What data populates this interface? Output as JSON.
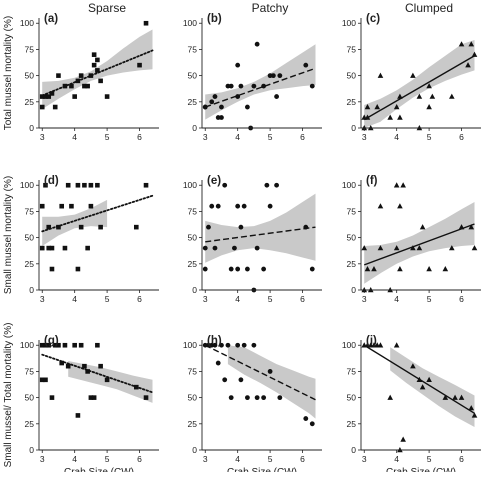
{
  "figure": {
    "column_titles": [
      "Sparse",
      "Patchy",
      "Clumped"
    ],
    "row_ylabels": [
      "Total mussel mortality (%)",
      "Small mussel mortality (%)",
      "Small mussel/ Total mortality (%)"
    ],
    "xlabel": "Crab Size (CW)"
  },
  "chart_data": [
    {
      "type": "scatter",
      "panel": "(a)",
      "column": "Sparse",
      "ylabel": "Total mussel mortality (%)",
      "xlabel": "",
      "xlim": [
        2.9,
        6.6
      ],
      "ylim": [
        0,
        105
      ],
      "xticks": [
        3,
        4,
        5,
        6
      ],
      "yticks": [
        0,
        25,
        50,
        75,
        100
      ],
      "marker": "square",
      "fit": {
        "style": "dotted",
        "x": [
          3.0,
          6.4
        ],
        "y": [
          31,
          74
        ]
      },
      "ci_band": {
        "x": [
          3.0,
          3.5,
          4.0,
          4.5,
          5.0,
          5.5,
          6.0,
          6.4
        ],
        "lower": [
          18,
          28,
          37,
          45,
          50,
          53,
          55,
          56
        ],
        "upper": [
          44,
          45,
          48,
          54,
          64,
          76,
          87,
          94
        ]
      },
      "points": [
        [
          3.0,
          30
        ],
        [
          3.0,
          20
        ],
        [
          3.1,
          30
        ],
        [
          3.2,
          30
        ],
        [
          3.3,
          33
        ],
        [
          3.4,
          20
        ],
        [
          3.5,
          50
        ],
        [
          3.7,
          40
        ],
        [
          3.9,
          40
        ],
        [
          4.0,
          30
        ],
        [
          4.1,
          45
        ],
        [
          4.2,
          50
        ],
        [
          4.3,
          40
        ],
        [
          4.4,
          40
        ],
        [
          4.5,
          50
        ],
        [
          4.6,
          60
        ],
        [
          4.6,
          70
        ],
        [
          4.7,
          55
        ],
        [
          4.7,
          65
        ],
        [
          4.8,
          45
        ],
        [
          5.0,
          30
        ],
        [
          6.0,
          60
        ],
        [
          6.2,
          100
        ]
      ]
    },
    {
      "type": "scatter",
      "panel": "(b)",
      "column": "Patchy",
      "ylabel": "",
      "xlabel": "",
      "xlim": [
        2.9,
        6.6
      ],
      "ylim": [
        0,
        105
      ],
      "xticks": [
        3,
        4,
        5,
        6
      ],
      "yticks": [
        0,
        25,
        50,
        75,
        100
      ],
      "marker": "circle",
      "fit": {
        "style": "dashed",
        "x": [
          3.0,
          6.4
        ],
        "y": [
          20,
          57
        ]
      },
      "ci_band": {
        "x": [
          3.0,
          3.5,
          4.0,
          4.5,
          5.0,
          5.5,
          6.0,
          6.4
        ],
        "lower": [
          8,
          17,
          25,
          32,
          36,
          38,
          40,
          41
        ],
        "upper": [
          32,
          34,
          38,
          44,
          52,
          62,
          72,
          80
        ]
      },
      "points": [
        [
          3.0,
          20
        ],
        [
          3.0,
          20
        ],
        [
          3.2,
          25
        ],
        [
          3.3,
          30
        ],
        [
          3.4,
          10
        ],
        [
          3.5,
          10
        ],
        [
          3.5,
          20
        ],
        [
          3.7,
          40
        ],
        [
          3.8,
          40
        ],
        [
          4.0,
          30
        ],
        [
          4.0,
          60
        ],
        [
          4.1,
          40
        ],
        [
          4.3,
          20
        ],
        [
          4.4,
          0
        ],
        [
          4.5,
          40
        ],
        [
          4.6,
          80
        ],
        [
          4.8,
          40
        ],
        [
          5.0,
          50
        ],
        [
          5.1,
          50
        ],
        [
          5.2,
          30
        ],
        [
          5.3,
          50
        ],
        [
          6.1,
          60
        ],
        [
          6.3,
          40
        ]
      ]
    },
    {
      "type": "scatter",
      "panel": "(c)",
      "column": "Clumped",
      "ylabel": "",
      "xlabel": "",
      "xlim": [
        2.9,
        6.6
      ],
      "ylim": [
        0,
        105
      ],
      "xticks": [
        3,
        4,
        5,
        6
      ],
      "yticks": [
        0,
        25,
        50,
        75,
        100
      ],
      "marker": "triangle",
      "fit": {
        "style": "solid",
        "x": [
          3.0,
          6.4
        ],
        "y": [
          8,
          69
        ]
      },
      "ci_band": {
        "x": [
          3.0,
          3.5,
          4.0,
          4.5,
          5.0,
          5.5,
          6.0,
          6.4
        ],
        "lower": [
          0,
          6,
          18,
          29,
          38,
          45,
          51,
          55
        ],
        "upper": [
          22,
          28,
          36,
          46,
          58,
          69,
          80,
          84
        ]
      },
      "points": [
        [
          3.0,
          0
        ],
        [
          3.0,
          10
        ],
        [
          3.1,
          10
        ],
        [
          3.1,
          20
        ],
        [
          3.2,
          0
        ],
        [
          3.4,
          20
        ],
        [
          3.5,
          50
        ],
        [
          3.8,
          10
        ],
        [
          4.0,
          20
        ],
        [
          4.1,
          10
        ],
        [
          4.1,
          30
        ],
        [
          4.5,
          50
        ],
        [
          4.7,
          30
        ],
        [
          4.7,
          0
        ],
        [
          5.0,
          20
        ],
        [
          5.0,
          40
        ],
        [
          5.1,
          30
        ],
        [
          5.7,
          30
        ],
        [
          6.0,
          80
        ],
        [
          6.2,
          60
        ],
        [
          6.3,
          80
        ],
        [
          6.4,
          70
        ]
      ]
    },
    {
      "type": "scatter",
      "panel": "(d)",
      "column": "Sparse",
      "ylabel": "Small mussel mortality (%)",
      "xlabel": "",
      "xlim": [
        2.9,
        6.6
      ],
      "ylim": [
        0,
        105
      ],
      "xticks": [
        3,
        4,
        5,
        6
      ],
      "yticks": [
        0,
        25,
        50,
        75,
        100
      ],
      "marker": "square",
      "fit": {
        "style": "dotted",
        "x": [
          3.0,
          6.4
        ],
        "y": [
          56,
          90
        ]
      },
      "ci_band": {
        "x": [
          3.0,
          3.5,
          4.0,
          4.5,
          5.0
        ],
        "lower": [
          42,
          52,
          59,
          61,
          60
        ],
        "upper": [
          70,
          70,
          72,
          78,
          86
        ]
      },
      "points": [
        [
          3.0,
          40
        ],
        [
          3.0,
          80
        ],
        [
          3.1,
          100
        ],
        [
          3.2,
          40
        ],
        [
          3.2,
          60
        ],
        [
          3.3,
          20
        ],
        [
          3.3,
          40
        ],
        [
          3.5,
          60
        ],
        [
          3.6,
          80
        ],
        [
          3.7,
          40
        ],
        [
          3.8,
          100
        ],
        [
          3.9,
          80
        ],
        [
          4.1,
          100
        ],
        [
          4.1,
          20
        ],
        [
          4.2,
          60
        ],
        [
          4.3,
          100
        ],
        [
          4.4,
          40
        ],
        [
          4.5,
          80
        ],
        [
          4.5,
          100
        ],
        [
          4.7,
          100
        ],
        [
          4.8,
          60
        ],
        [
          5.9,
          60
        ],
        [
          6.2,
          100
        ]
      ]
    },
    {
      "type": "scatter",
      "panel": "(e)",
      "column": "Patchy",
      "ylabel": "",
      "xlabel": "",
      "xlim": [
        2.9,
        6.6
      ],
      "ylim": [
        0,
        105
      ],
      "xticks": [
        3,
        4,
        5,
        6
      ],
      "yticks": [
        0,
        25,
        50,
        75,
        100
      ],
      "marker": "circle",
      "fit": {
        "style": "dashed",
        "x": [
          3.0,
          6.4
        ],
        "y": [
          46,
          60
        ]
      },
      "ci_band": {
        "x": [
          3.0,
          3.5,
          4.0,
          4.5,
          5.0,
          5.5,
          6.0,
          6.4
        ],
        "lower": [
          26,
          33,
          38,
          40,
          38,
          35,
          31,
          28
        ],
        "upper": [
          66,
          62,
          60,
          61,
          66,
          74,
          84,
          92
        ]
      },
      "points": [
        [
          3.0,
          20
        ],
        [
          3.0,
          40
        ],
        [
          3.1,
          60
        ],
        [
          3.2,
          80
        ],
        [
          3.3,
          40
        ],
        [
          3.4,
          80
        ],
        [
          3.6,
          100
        ],
        [
          3.8,
          20
        ],
        [
          3.9,
          40
        ],
        [
          4.0,
          20
        ],
        [
          4.0,
          80
        ],
        [
          4.1,
          60
        ],
        [
          4.2,
          80
        ],
        [
          4.3,
          20
        ],
        [
          4.5,
          0
        ],
        [
          4.6,
          40
        ],
        [
          4.8,
          20
        ],
        [
          4.9,
          100
        ],
        [
          5.0,
          80
        ],
        [
          5.2,
          100
        ],
        [
          6.1,
          60
        ],
        [
          6.3,
          20
        ]
      ]
    },
    {
      "type": "scatter",
      "panel": "(f)",
      "column": "Clumped",
      "ylabel": "",
      "xlabel": "",
      "xlim": [
        2.9,
        6.6
      ],
      "ylim": [
        0,
        105
      ],
      "xticks": [
        3,
        4,
        5,
        6
      ],
      "yticks": [
        0,
        25,
        50,
        75,
        100
      ],
      "marker": "triangle",
      "fit": {
        "style": "solid",
        "x": [
          3.0,
          6.4
        ],
        "y": [
          24,
          63
        ]
      },
      "ci_band": {
        "x": [
          3.0,
          3.5,
          4.0,
          4.5,
          5.0,
          5.5,
          6.0,
          6.4
        ],
        "lower": [
          6,
          16,
          25,
          32,
          37,
          40,
          42,
          43
        ],
        "upper": [
          42,
          43,
          46,
          52,
          60,
          68,
          77,
          84
        ]
      },
      "points": [
        [
          3.0,
          0
        ],
        [
          3.0,
          40
        ],
        [
          3.1,
          20
        ],
        [
          3.2,
          0
        ],
        [
          3.3,
          20
        ],
        [
          3.5,
          40
        ],
        [
          3.5,
          80
        ],
        [
          3.8,
          0
        ],
        [
          4.0,
          40
        ],
        [
          4.0,
          100
        ],
        [
          4.1,
          80
        ],
        [
          4.1,
          20
        ],
        [
          4.2,
          100
        ],
        [
          4.5,
          40
        ],
        [
          4.7,
          40
        ],
        [
          4.8,
          60
        ],
        [
          5.0,
          20
        ],
        [
          5.5,
          20
        ],
        [
          5.7,
          40
        ],
        [
          6.0,
          60
        ],
        [
          6.3,
          60
        ],
        [
          6.4,
          40
        ]
      ]
    },
    {
      "type": "scatter",
      "panel": "(g)",
      "column": "Sparse",
      "ylabel": "Small mussel/ Total mortality (%)",
      "xlabel": "Crab Size (CW)",
      "xlim": [
        2.9,
        6.6
      ],
      "ylim": [
        0,
        105
      ],
      "xticks": [
        3,
        4,
        5,
        6
      ],
      "yticks": [
        0,
        25,
        50,
        75,
        100
      ],
      "marker": "square",
      "fit": {
        "style": "dotted",
        "x": [
          3.0,
          6.4
        ],
        "y": [
          91,
          55
        ]
      },
      "ci_band": {
        "x": [
          3.8,
          4.3,
          4.8,
          5.3,
          5.8,
          6.4
        ],
        "lower": [
          70,
          66,
          62,
          58,
          52,
          45
        ],
        "upper": [
          85,
          82,
          79,
          75,
          71,
          67
        ]
      },
      "points": [
        [
          3.0,
          100
        ],
        [
          3.0,
          67
        ],
        [
          3.1,
          67
        ],
        [
          3.1,
          100
        ],
        [
          3.2,
          100
        ],
        [
          3.3,
          50
        ],
        [
          3.4,
          100
        ],
        [
          3.5,
          100
        ],
        [
          3.6,
          83
        ],
        [
          3.7,
          100
        ],
        [
          3.8,
          80
        ],
        [
          4.0,
          100
        ],
        [
          4.1,
          33
        ],
        [
          4.2,
          100
        ],
        [
          4.3,
          80
        ],
        [
          4.4,
          75
        ],
        [
          4.5,
          50
        ],
        [
          4.6,
          50
        ],
        [
          4.7,
          100
        ],
        [
          4.8,
          80
        ],
        [
          5.0,
          67
        ],
        [
          5.9,
          60
        ],
        [
          6.2,
          50
        ]
      ]
    },
    {
      "type": "scatter",
      "panel": "(h)",
      "column": "Patchy",
      "ylabel": "",
      "xlabel": "Crab Size (CW)",
      "xlim": [
        2.9,
        6.6
      ],
      "ylim": [
        0,
        105
      ],
      "xticks": [
        3,
        4,
        5,
        6
      ],
      "yticks": [
        0,
        25,
        50,
        75,
        100
      ],
      "marker": "circle",
      "fit": {
        "style": "dashed",
        "x": [
          3.0,
          6.4
        ],
        "y": [
          100,
          48
        ]
      },
      "ci_band": {
        "x": [
          3.7,
          4.2,
          4.7,
          5.2,
          5.7,
          6.2,
          6.4
        ],
        "lower": [
          82,
          72,
          64,
          55,
          45,
          35,
          30
        ],
        "upper": [
          100,
          98,
          90,
          82,
          76,
          70,
          68
        ]
      },
      "points": [
        [
          3.0,
          100
        ],
        [
          3.1,
          100
        ],
        [
          3.2,
          100
        ],
        [
          3.3,
          100
        ],
        [
          3.4,
          83
        ],
        [
          3.5,
          100
        ],
        [
          3.6,
          67
        ],
        [
          3.7,
          100
        ],
        [
          3.8,
          50
        ],
        [
          4.0,
          100
        ],
        [
          4.1,
          67
        ],
        [
          4.2,
          100
        ],
        [
          4.3,
          50
        ],
        [
          4.5,
          100
        ],
        [
          4.6,
          50
        ],
        [
          4.8,
          50
        ],
        [
          5.0,
          75
        ],
        [
          5.3,
          50
        ],
        [
          6.1,
          30
        ],
        [
          6.3,
          25
        ]
      ]
    },
    {
      "type": "scatter",
      "panel": "(i)",
      "column": "Clumped",
      "ylabel": "",
      "xlabel": "Crab Size (CW)",
      "xlim": [
        2.9,
        6.6
      ],
      "ylim": [
        0,
        105
      ],
      "xticks": [
        3,
        4,
        5,
        6
      ],
      "yticks": [
        0,
        25,
        50,
        75,
        100
      ],
      "marker": "triangle",
      "fit": {
        "style": "solid",
        "x": [
          3.0,
          6.4
        ],
        "y": [
          100,
          35
        ]
      },
      "ci_band": {
        "x": [
          3.8,
          4.3,
          4.8,
          5.3,
          5.8,
          6.4
        ],
        "lower": [
          76,
          64,
          53,
          42,
          32,
          22
        ],
        "upper": [
          98,
          88,
          78,
          70,
          62,
          52
        ]
      },
      "points": [
        [
          3.0,
          100
        ],
        [
          3.1,
          100
        ],
        [
          3.2,
          100
        ],
        [
          3.3,
          100
        ],
        [
          3.4,
          100
        ],
        [
          3.5,
          100
        ],
        [
          3.8,
          50
        ],
        [
          4.0,
          100
        ],
        [
          4.1,
          0
        ],
        [
          4.2,
          10
        ],
        [
          4.5,
          80
        ],
        [
          4.7,
          67
        ],
        [
          4.8,
          60
        ],
        [
          5.0,
          67
        ],
        [
          5.5,
          50
        ],
        [
          5.8,
          50
        ],
        [
          6.0,
          50
        ],
        [
          6.3,
          40
        ],
        [
          6.4,
          33
        ]
      ]
    }
  ]
}
